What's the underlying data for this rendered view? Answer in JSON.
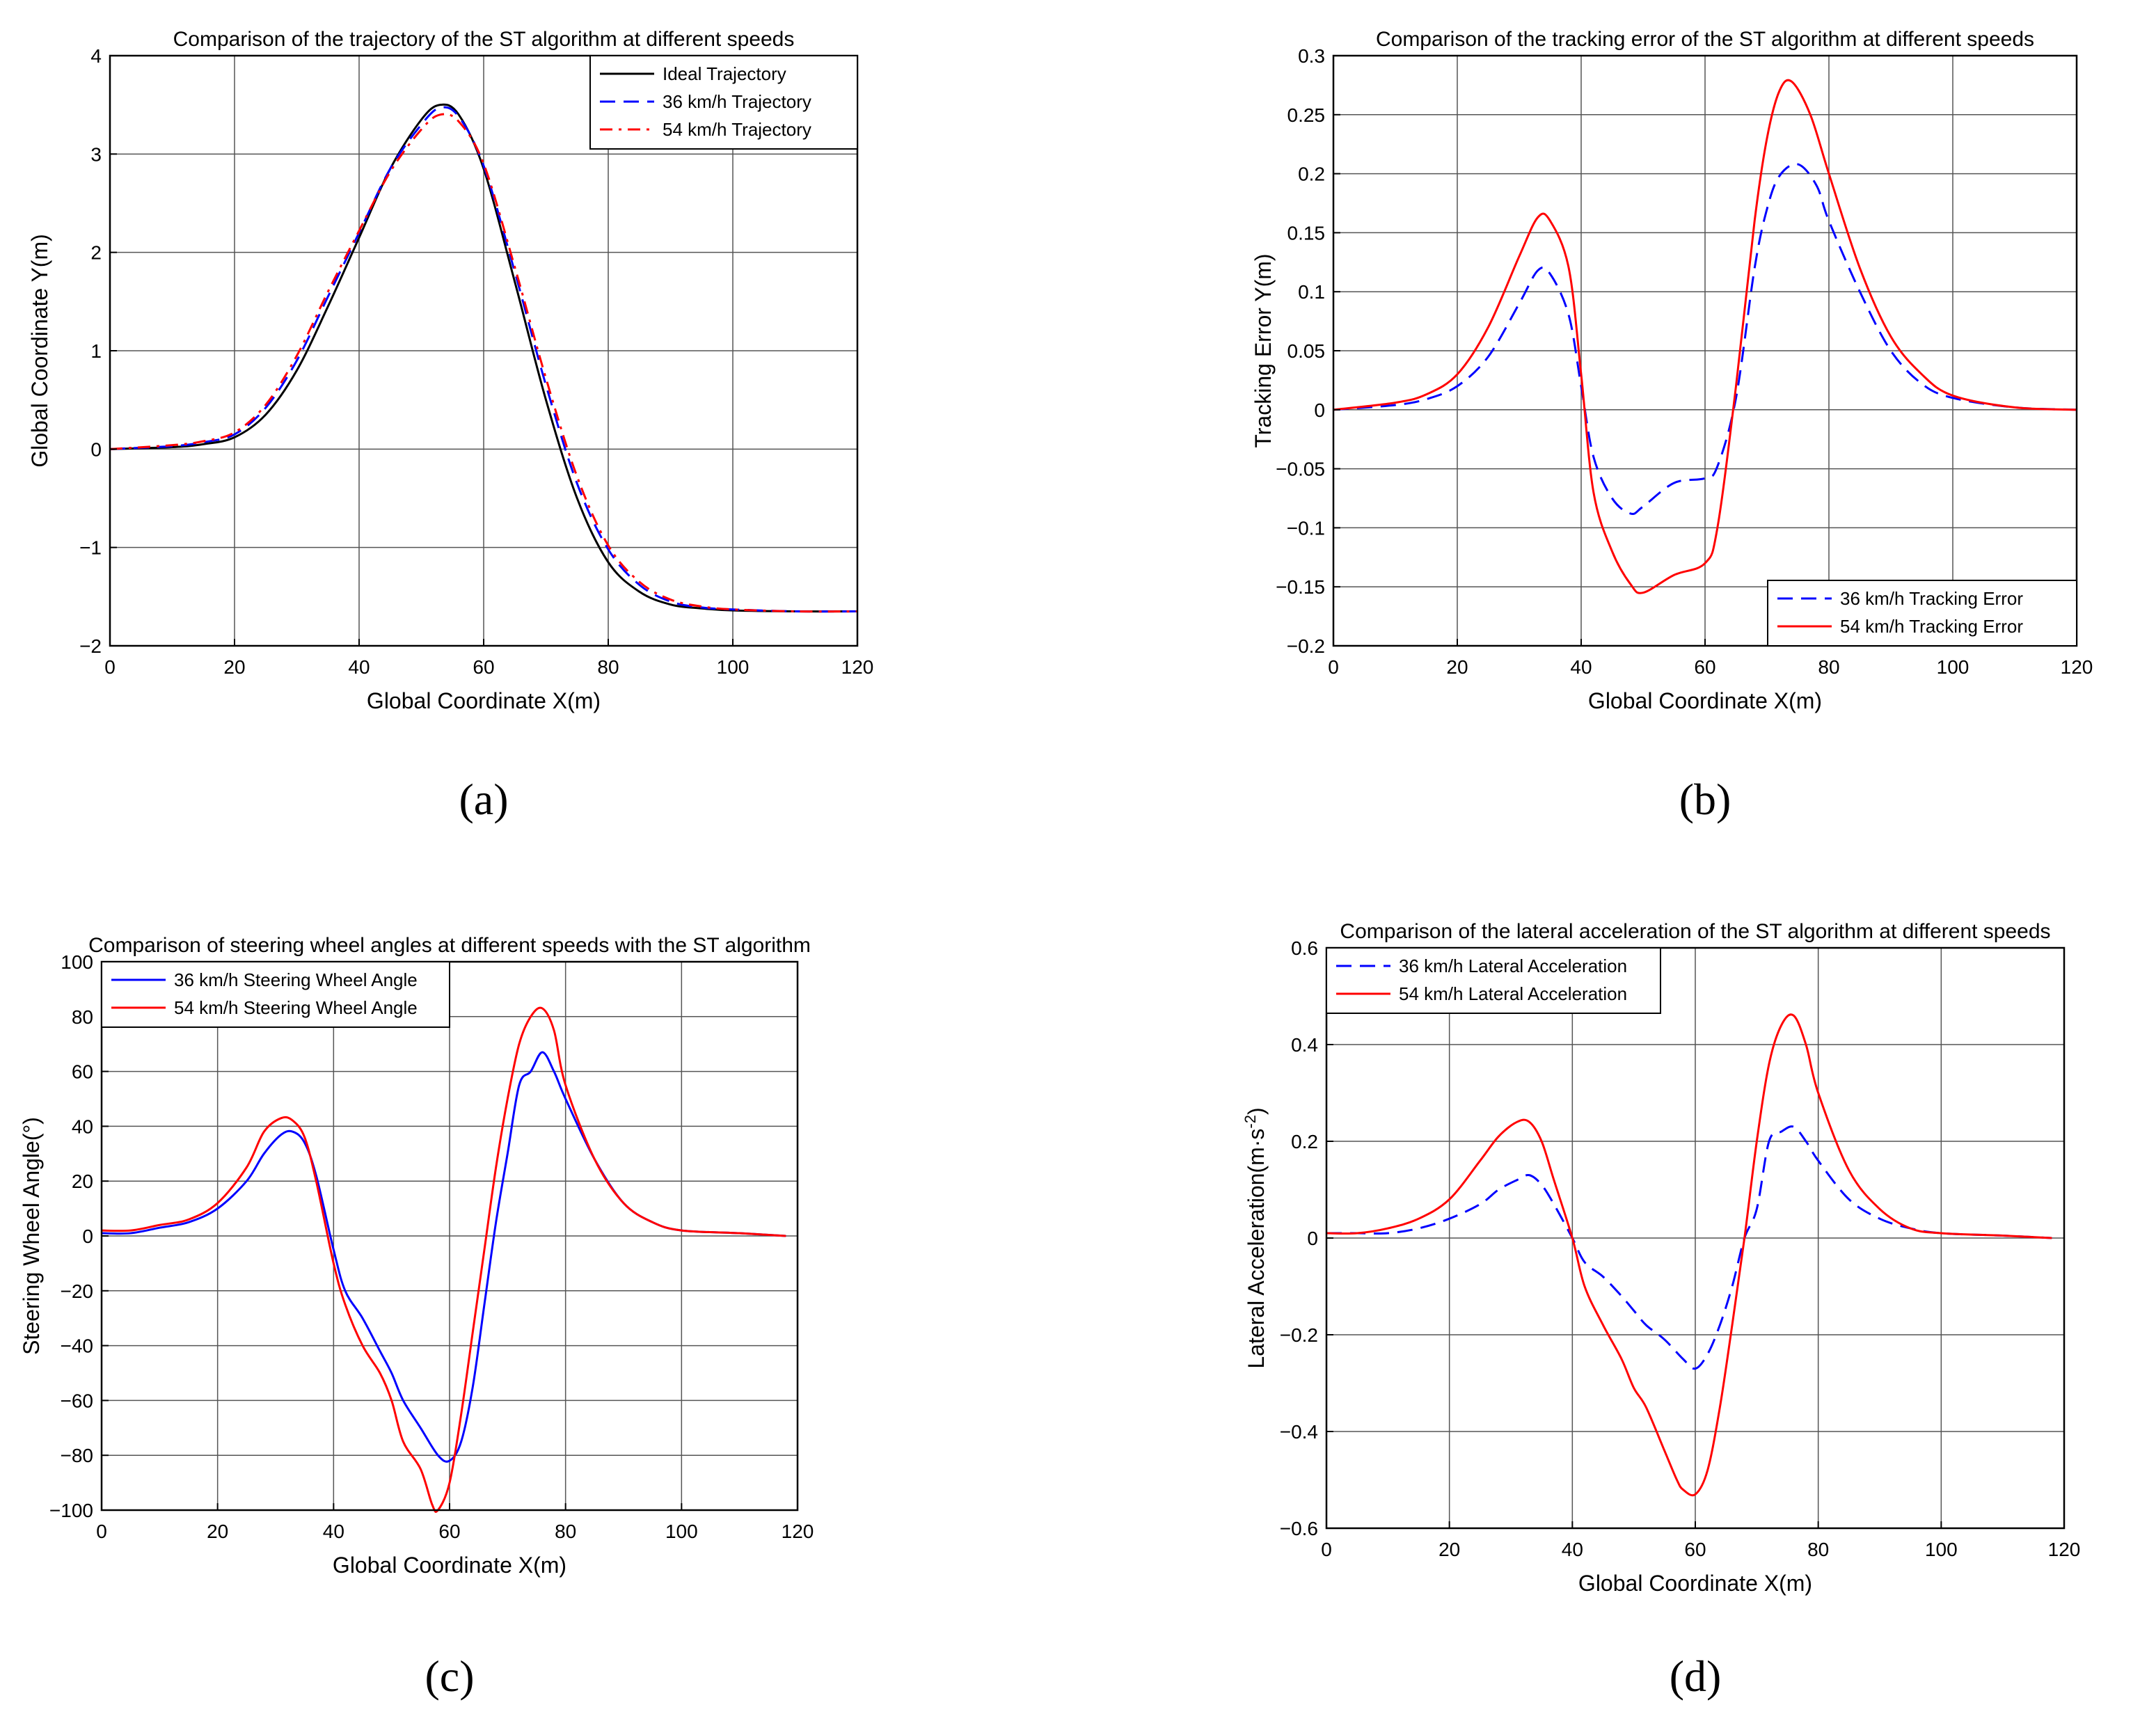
{
  "chart_data": [
    {
      "id": "a",
      "type": "line",
      "panel_label": "(a)",
      "title": "Comparison of the trajectory of the ST algorithm at different speeds",
      "xlabel": "Global Coordinate X(m)",
      "ylabel": "Global Coordinate Y(m)",
      "xlim": [
        0,
        120
      ],
      "ylim": [
        -2,
        4
      ],
      "xticks": [
        0,
        20,
        40,
        60,
        80,
        100,
        120
      ],
      "yticks": [
        -2,
        -1,
        0,
        1,
        2,
        3,
        4
      ],
      "grid": true,
      "legend_position": "top-right",
      "series": [
        {
          "name": "Ideal Trajectory",
          "color": "#000000",
          "style": "solid",
          "x": [
            0,
            10,
            15,
            20,
            25,
            30,
            35,
            40,
            45,
            50,
            53,
            56,
            60,
            65,
            70,
            75,
            80,
            85,
            90,
            95,
            100,
            110,
            120
          ],
          "y": [
            0,
            0.02,
            0.05,
            0.12,
            0.35,
            0.8,
            1.45,
            2.15,
            2.85,
            3.35,
            3.5,
            3.4,
            2.85,
            1.7,
            0.5,
            -0.5,
            -1.15,
            -1.45,
            -1.58,
            -1.62,
            -1.64,
            -1.65,
            -1.65
          ]
        },
        {
          "name": "36 km/h Trajectory",
          "color": "#0000ff",
          "style": "dashed",
          "x": [
            0,
            10,
            15,
            20,
            25,
            30,
            35,
            40,
            45,
            50,
            53,
            56,
            60,
            65,
            70,
            75,
            80,
            85,
            90,
            95,
            100,
            110,
            120
          ],
          "y": [
            0,
            0.03,
            0.07,
            0.15,
            0.42,
            0.9,
            1.55,
            2.2,
            2.85,
            3.3,
            3.47,
            3.38,
            2.88,
            1.8,
            0.65,
            -0.35,
            -1.02,
            -1.38,
            -1.55,
            -1.61,
            -1.63,
            -1.65,
            -1.65
          ]
        },
        {
          "name": "54 km/h Trajectory",
          "color": "#ff0000",
          "style": "dashdot",
          "x": [
            0,
            10,
            15,
            20,
            25,
            30,
            35,
            40,
            45,
            50,
            53,
            56,
            60,
            65,
            70,
            75,
            80,
            85,
            90,
            95,
            100,
            110,
            120
          ],
          "y": [
            0,
            0.04,
            0.08,
            0.17,
            0.45,
            0.95,
            1.6,
            2.22,
            2.82,
            3.25,
            3.4,
            3.33,
            2.9,
            1.85,
            0.72,
            -0.28,
            -0.98,
            -1.35,
            -1.53,
            -1.6,
            -1.63,
            -1.65,
            -1.65
          ]
        }
      ]
    },
    {
      "id": "b",
      "type": "line",
      "panel_label": "(b)",
      "title": "Comparison of the tracking error of the ST algorithm at different speeds",
      "xlabel": "Global Coordinate X(m)",
      "ylabel": "Tracking Error Y(m)",
      "xlim": [
        0,
        120
      ],
      "ylim": [
        -0.2,
        0.3
      ],
      "xticks": [
        0,
        20,
        40,
        60,
        80,
        100,
        120
      ],
      "yticks": [
        -0.2,
        -0.15,
        -0.1,
        -0.05,
        0,
        0.05,
        0.1,
        0.15,
        0.2,
        0.25,
        0.3
      ],
      "grid": true,
      "legend_position": "bottom-right",
      "series": [
        {
          "name": "36 km/h Tracking Error",
          "color": "#0000ff",
          "style": "dashed",
          "x": [
            0,
            10,
            15,
            20,
            25,
            30,
            33,
            35,
            38,
            40,
            42,
            45,
            48,
            50,
            55,
            60,
            62,
            65,
            68,
            70,
            72,
            75,
            78,
            80,
            85,
            90,
            95,
            100,
            110,
            120
          ],
          "y": [
            0,
            0.004,
            0.009,
            0.02,
            0.045,
            0.09,
            0.118,
            0.115,
            0.08,
            0.02,
            -0.04,
            -0.075,
            -0.088,
            -0.082,
            -0.062,
            -0.058,
            -0.048,
            0.01,
            0.12,
            0.17,
            0.198,
            0.208,
            0.19,
            0.16,
            0.1,
            0.05,
            0.022,
            0.01,
            0.002,
            0
          ]
        },
        {
          "name": "54 km/h Tracking Error",
          "color": "#ff0000",
          "style": "solid",
          "x": [
            0,
            10,
            15,
            20,
            25,
            30,
            33,
            35,
            38,
            40,
            42,
            45,
            48,
            50,
            55,
            60,
            62,
            65,
            68,
            70,
            72,
            74,
            77,
            80,
            85,
            90,
            95,
            100,
            110,
            120
          ],
          "y": [
            0,
            0.006,
            0.013,
            0.03,
            0.07,
            0.13,
            0.163,
            0.16,
            0.12,
            0.03,
            -0.07,
            -0.12,
            -0.148,
            -0.155,
            -0.14,
            -0.13,
            -0.1,
            0.02,
            0.16,
            0.23,
            0.27,
            0.278,
            0.25,
            0.2,
            0.12,
            0.062,
            0.03,
            0.012,
            0.002,
            0
          ]
        }
      ]
    },
    {
      "id": "c",
      "type": "line",
      "panel_label": "(c)",
      "title": "Comparison of steering wheel angles at different speeds with the ST algorithm",
      "xlabel": "Global Coordinate X(m)",
      "ylabel": "Steering Wheel Angle(°)",
      "xlim": [
        0,
        120
      ],
      "ylim": [
        -100,
        100
      ],
      "xticks": [
        0,
        20,
        40,
        60,
        80,
        100,
        120
      ],
      "yticks": [
        -100,
        -80,
        -60,
        -40,
        -20,
        0,
        20,
        40,
        60,
        80,
        100
      ],
      "grid": true,
      "legend_position": "top-left",
      "series": [
        {
          "name": "36 km/h Steering Wheel Angle",
          "color": "#0000ff",
          "style": "solid",
          "x": [
            0,
            5,
            10,
            15,
            20,
            25,
            28,
            31,
            33,
            35,
            37,
            40,
            42,
            45,
            48,
            50,
            52,
            55,
            58,
            60,
            62,
            64,
            66,
            68,
            70,
            72,
            74,
            76,
            78,
            80,
            85,
            90,
            95,
            100,
            110,
            118
          ],
          "y": [
            1,
            1,
            3,
            5,
            10,
            20,
            30,
            37,
            38,
            34,
            22,
            -5,
            -20,
            -30,
            -42,
            -50,
            -60,
            -70,
            -80,
            -82,
            -75,
            -55,
            -25,
            5,
            30,
            55,
            60,
            67,
            60,
            50,
            28,
            12,
            5,
            2,
            1,
            0
          ]
        },
        {
          "name": "54 km/h Steering Wheel Angle",
          "color": "#ff0000",
          "style": "solid",
          "x": [
            0,
            5,
            10,
            15,
            20,
            25,
            28,
            31,
            33,
            35,
            37,
            40,
            42,
            45,
            48,
            50,
            52,
            55,
            57,
            58,
            60,
            62,
            64,
            66,
            68,
            70,
            72,
            74,
            76,
            78,
            80,
            85,
            90,
            95,
            100,
            110,
            118
          ],
          "y": [
            2,
            2,
            4,
            6,
            12,
            25,
            38,
            43,
            42,
            36,
            20,
            -10,
            -25,
            -40,
            -50,
            -60,
            -75,
            -85,
            -98,
            -100,
            -90,
            -65,
            -35,
            -5,
            25,
            50,
            70,
            80,
            83,
            75,
            55,
            28,
            12,
            5,
            2,
            1,
            0
          ]
        }
      ]
    },
    {
      "id": "d",
      "type": "line",
      "panel_label": "(d)",
      "title": "Comparison of the lateral acceleration of the ST algorithm at different speeds",
      "xlabel": "Global Coordinate X(m)",
      "ylabel": "Lateral Acceleration(m·s",
      "ylabel_sup": "-2",
      "ylabel_end": ")",
      "xlim": [
        0,
        120
      ],
      "ylim": [
        -0.6,
        0.6
      ],
      "xticks": [
        0,
        20,
        40,
        60,
        80,
        100,
        120
      ],
      "yticks": [
        -0.6,
        -0.4,
        -0.2,
        0,
        0.2,
        0.4,
        0.6
      ],
      "grid": true,
      "legend_position": "top-left",
      "series": [
        {
          "name": "36 km/h Lateral Acceleration",
          "color": "#0000ff",
          "style": "dashed",
          "x": [
            0,
            5,
            10,
            15,
            20,
            25,
            28,
            31,
            33,
            35,
            37,
            40,
            42,
            45,
            48,
            50,
            52,
            55,
            58,
            60,
            62,
            64,
            66,
            68,
            70,
            72,
            74,
            76,
            78,
            80,
            85,
            90,
            95,
            100,
            110,
            118
          ],
          "y": [
            0.01,
            0.01,
            0.01,
            0.02,
            0.04,
            0.07,
            0.1,
            0.12,
            0.13,
            0.11,
            0.07,
            0,
            -0.05,
            -0.08,
            -0.12,
            -0.15,
            -0.18,
            -0.21,
            -0.25,
            -0.27,
            -0.24,
            -0.18,
            -0.1,
            0,
            0.06,
            0.2,
            0.22,
            0.23,
            0.2,
            0.16,
            0.08,
            0.04,
            0.02,
            0.01,
            0.005,
            0
          ]
        },
        {
          "name": "54 km/h Lateral Acceleration",
          "color": "#ff0000",
          "style": "solid",
          "x": [
            0,
            5,
            10,
            15,
            20,
            25,
            28,
            31,
            33,
            35,
            37,
            40,
            42,
            45,
            48,
            50,
            52,
            55,
            57,
            58,
            60,
            62,
            64,
            66,
            68,
            70,
            72,
            74,
            76,
            78,
            80,
            85,
            90,
            95,
            100,
            110,
            118
          ],
          "y": [
            0.01,
            0.01,
            0.02,
            0.04,
            0.08,
            0.16,
            0.21,
            0.24,
            0.24,
            0.2,
            0.12,
            0,
            -0.1,
            -0.18,
            -0.25,
            -0.31,
            -0.35,
            -0.44,
            -0.5,
            -0.52,
            -0.53,
            -0.48,
            -0.35,
            -0.18,
            0,
            0.2,
            0.36,
            0.44,
            0.46,
            0.4,
            0.3,
            0.14,
            0.06,
            0.02,
            0.01,
            0.005,
            0
          ]
        }
      ]
    }
  ]
}
